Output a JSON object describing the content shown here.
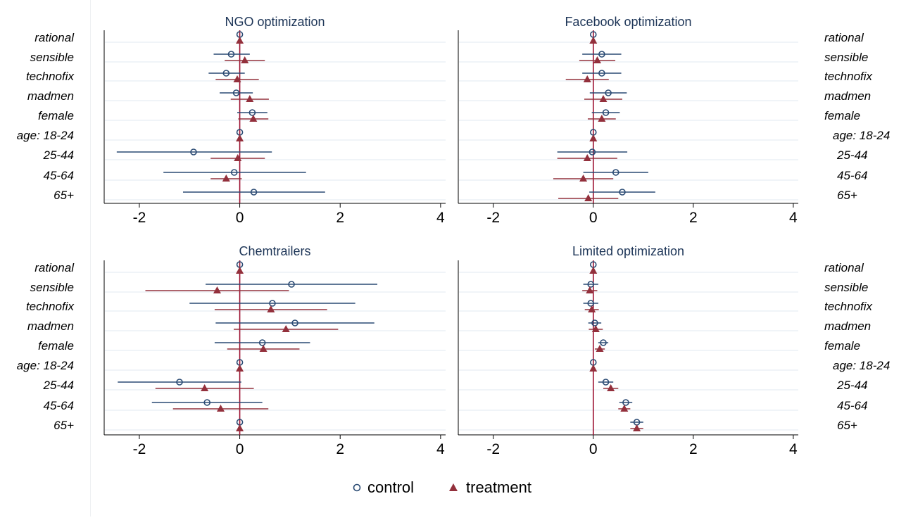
{
  "categories": [
    "rational",
    "sensible",
    "technofix",
    "madmen",
    "female",
    "age: 18-24",
    "25-44",
    "45-64",
    "65+"
  ],
  "right_categories": [
    "rational",
    "sensible",
    "technofix",
    "madmen",
    "female",
    "age: 18-24",
    "25-44",
    "45-64",
    "65+"
  ],
  "legend": {
    "control": "control",
    "treatment": "treatment"
  },
  "colors": {
    "control": "#2a4a73",
    "treatment": "#93303c",
    "zero_line": "#9b1030",
    "grid": "#e8eef3",
    "axis": "#000000"
  },
  "chart_data": [
    {
      "type": "coefficient-plot",
      "title": "NGO optimization",
      "xlim": [
        -2.7,
        4.1
      ],
      "xticks": [
        -2,
        0,
        2,
        4
      ],
      "series": [
        {
          "name": "control",
          "points": [
            {
              "est": 0.0,
              "lo": 0.0,
              "hi": 0.0
            },
            {
              "est": -0.17,
              "lo": -0.52,
              "hi": 0.2
            },
            {
              "est": -0.27,
              "lo": -0.62,
              "hi": 0.1
            },
            {
              "est": -0.07,
              "lo": -0.4,
              "hi": 0.26
            },
            {
              "est": 0.25,
              "lo": -0.05,
              "hi": 0.55
            },
            {
              "est": 0.0,
              "lo": 0.0,
              "hi": 0.0
            },
            {
              "est": -0.92,
              "lo": -2.45,
              "hi": 0.64
            },
            {
              "est": -0.11,
              "lo": -1.52,
              "hi": 1.32
            },
            {
              "est": 0.28,
              "lo": -1.13,
              "hi": 1.7
            }
          ]
        },
        {
          "name": "treatment",
          "points": [
            {
              "est": 0.0,
              "lo": 0.0,
              "hi": 0.0
            },
            {
              "est": 0.1,
              "lo": -0.3,
              "hi": 0.5
            },
            {
              "est": -0.05,
              "lo": -0.48,
              "hi": 0.38
            },
            {
              "est": 0.2,
              "lo": -0.18,
              "hi": 0.58
            },
            {
              "est": 0.27,
              "lo": -0.03,
              "hi": 0.57
            },
            {
              "est": 0.0,
              "lo": 0.0,
              "hi": 0.0
            },
            {
              "est": -0.04,
              "lo": -0.58,
              "hi": 0.5
            },
            {
              "est": -0.27,
              "lo": -0.58,
              "hi": 0.04
            },
            null
          ]
        }
      ]
    },
    {
      "type": "coefficient-plot",
      "title": "Facebook optimization",
      "xlim": [
        -2.7,
        4.1
      ],
      "xticks": [
        -2,
        0,
        2,
        4
      ],
      "series": [
        {
          "name": "control",
          "points": [
            {
              "est": 0.0,
              "lo": 0.0,
              "hi": 0.0
            },
            {
              "est": 0.17,
              "lo": -0.22,
              "hi": 0.56
            },
            {
              "est": 0.17,
              "lo": -0.22,
              "hi": 0.56
            },
            {
              "est": 0.3,
              "lo": -0.07,
              "hi": 0.67
            },
            {
              "est": 0.25,
              "lo": -0.03,
              "hi": 0.53
            },
            {
              "est": 0.0,
              "lo": 0.0,
              "hi": 0.0
            },
            {
              "est": -0.02,
              "lo": -0.72,
              "hi": 0.68
            },
            {
              "est": 0.45,
              "lo": -0.2,
              "hi": 1.1
            },
            {
              "est": 0.58,
              "lo": -0.08,
              "hi": 1.24
            }
          ]
        },
        {
          "name": "treatment",
          "points": [
            {
              "est": 0.0,
              "lo": 0.0,
              "hi": 0.0
            },
            {
              "est": 0.08,
              "lo": -0.28,
              "hi": 0.44
            },
            {
              "est": -0.12,
              "lo": -0.55,
              "hi": 0.31
            },
            {
              "est": 0.2,
              "lo": -0.18,
              "hi": 0.58
            },
            {
              "est": 0.17,
              "lo": -0.11,
              "hi": 0.45
            },
            {
              "est": 0.0,
              "lo": 0.0,
              "hi": 0.0
            },
            {
              "est": -0.12,
              "lo": -0.72,
              "hi": 0.48
            },
            {
              "est": -0.2,
              "lo": -0.8,
              "hi": 0.4
            },
            {
              "est": -0.1,
              "lo": -0.7,
              "hi": 0.5
            }
          ]
        }
      ]
    },
    {
      "type": "coefficient-plot",
      "title": "Chemtrailers",
      "xlim": [
        -2.7,
        4.1
      ],
      "xticks": [
        -2,
        0,
        2,
        4
      ],
      "series": [
        {
          "name": "control",
          "points": [
            {
              "est": 0.0,
              "lo": 0.0,
              "hi": 0.0
            },
            {
              "est": 1.03,
              "lo": -0.68,
              "hi": 2.74
            },
            {
              "est": 0.65,
              "lo": -1.0,
              "hi": 2.3
            },
            {
              "est": 1.1,
              "lo": -0.48,
              "hi": 2.68
            },
            {
              "est": 0.45,
              "lo": -0.5,
              "hi": 1.4
            },
            {
              "est": 0.0,
              "lo": 0.0,
              "hi": 0.0
            },
            {
              "est": -1.2,
              "lo": -2.43,
              "hi": 0.03
            },
            {
              "est": -0.65,
              "lo": -1.75,
              "hi": 0.45
            },
            {
              "est": 0.0,
              "lo": 0.0,
              "hi": 0.0
            }
          ]
        },
        {
          "name": "treatment",
          "points": [
            {
              "est": 0.0,
              "lo": 0.0,
              "hi": 0.0
            },
            {
              "est": -0.45,
              "lo": -1.88,
              "hi": 0.98
            },
            {
              "est": 0.62,
              "lo": -0.5,
              "hi": 1.74
            },
            {
              "est": 0.92,
              "lo": -0.12,
              "hi": 1.96
            },
            {
              "est": 0.47,
              "lo": -0.25,
              "hi": 1.19
            },
            {
              "est": 0.0,
              "lo": 0.0,
              "hi": 0.0
            },
            {
              "est": -0.7,
              "lo": -1.68,
              "hi": 0.28
            },
            {
              "est": -0.38,
              "lo": -1.33,
              "hi": 0.57
            },
            {
              "est": 0.0,
              "lo": 0.0,
              "hi": 0.0
            }
          ]
        }
      ]
    },
    {
      "type": "coefficient-plot",
      "title": "Limited optimization",
      "xlim": [
        -2.7,
        4.1
      ],
      "xticks": [
        -2,
        0,
        2,
        4
      ],
      "series": [
        {
          "name": "control",
          "points": [
            {
              "est": 0.0,
              "lo": 0.0,
              "hi": 0.0
            },
            {
              "est": -0.05,
              "lo": -0.2,
              "hi": 0.1
            },
            {
              "est": -0.05,
              "lo": -0.2,
              "hi": 0.1
            },
            {
              "est": 0.03,
              "lo": -0.1,
              "hi": 0.16
            },
            {
              "est": 0.2,
              "lo": 0.1,
              "hi": 0.3
            },
            {
              "est": 0.0,
              "lo": 0.0,
              "hi": 0.0
            },
            {
              "est": 0.25,
              "lo": 0.1,
              "hi": 0.4
            },
            {
              "est": 0.65,
              "lo": 0.52,
              "hi": 0.78
            },
            {
              "est": 0.87,
              "lo": 0.74,
              "hi": 1.0
            }
          ]
        },
        {
          "name": "treatment",
          "points": [
            {
              "est": 0.0,
              "lo": 0.0,
              "hi": 0.0
            },
            {
              "est": -0.07,
              "lo": -0.22,
              "hi": 0.08
            },
            {
              "est": -0.03,
              "lo": -0.17,
              "hi": 0.11
            },
            {
              "est": 0.05,
              "lo": -0.09,
              "hi": 0.19
            },
            {
              "est": 0.13,
              "lo": 0.03,
              "hi": 0.23
            },
            {
              "est": 0.0,
              "lo": 0.0,
              "hi": 0.0
            },
            {
              "est": 0.35,
              "lo": 0.2,
              "hi": 0.5
            },
            {
              "est": 0.62,
              "lo": 0.5,
              "hi": 0.74
            },
            {
              "est": 0.87,
              "lo": 0.74,
              "hi": 1.0
            }
          ]
        }
      ]
    }
  ]
}
